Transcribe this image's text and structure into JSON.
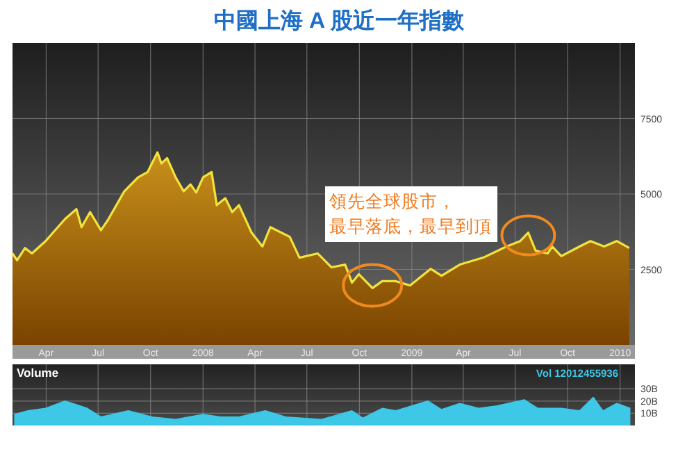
{
  "chart_data": [
    {
      "type": "area",
      "title": "中國上海 A 股近一年指數",
      "xlim": [
        "2007-02-01",
        "2010-01-27"
      ],
      "xticks": [
        {
          "value": "2007-04-01",
          "label": "Apr"
        },
        {
          "value": "2007-07-01",
          "label": "Jul"
        },
        {
          "value": "2007-10-01",
          "label": "Oct"
        },
        {
          "value": "2008-01-01",
          "label": "2008"
        },
        {
          "value": "2008-04-01",
          "label": "Apr"
        },
        {
          "value": "2008-07-01",
          "label": "Jul"
        },
        {
          "value": "2008-10-01",
          "label": "Oct"
        },
        {
          "value": "2009-01-01",
          "label": "2009"
        },
        {
          "value": "2009-04-01",
          "label": "Apr"
        },
        {
          "value": "2009-07-01",
          "label": "Jul"
        },
        {
          "value": "2009-10-01",
          "label": "Oct"
        },
        {
          "value": "2010-01-01",
          "label": "2010"
        }
      ],
      "ylim": [
        0,
        10000
      ],
      "yticks": [
        2500,
        5000,
        7500
      ],
      "grid": true,
      "annotations": [
        "領先全球股市，",
        "最早落底，最早到頂"
      ],
      "series": [
        {
          "color": "#f2e33a",
          "x": [
            "2007-02-01",
            "2007-02-09",
            "2007-02-23",
            "2007-03-07",
            "2007-03-31",
            "2007-05-04",
            "2007-05-24",
            "2007-06-02",
            "2007-06-17",
            "2007-07-06",
            "2007-07-18",
            "2007-08-16",
            "2007-09-09",
            "2007-09-26",
            "2007-10-13",
            "2007-10-20",
            "2007-10-30",
            "2007-11-14",
            "2007-11-28",
            "2007-12-10",
            "2007-12-20",
            "2008-01-01",
            "2008-01-16",
            "2008-01-25",
            "2008-02-09",
            "2008-02-21",
            "2008-03-04",
            "2008-03-26",
            "2008-04-14",
            "2008-04-28",
            "2008-06-01",
            "2008-06-18",
            "2008-07-20",
            "2008-08-13",
            "2008-09-06",
            "2008-09-18",
            "2008-09-30",
            "2008-10-24",
            "2008-11-10",
            "2008-12-04",
            "2008-12-12",
            "2008-12-29",
            "2009-02-03",
            "2009-02-22",
            "2009-03-26",
            "2009-05-06",
            "2009-06-16",
            "2009-07-10",
            "2009-07-24",
            "2009-08-06",
            "2009-08-27",
            "2009-09-04",
            "2009-09-20",
            "2009-10-22",
            "2009-11-10",
            "2009-12-04",
            "2009-12-26",
            "2010-01-17"
          ],
          "values": [
            3030,
            2800,
            3210,
            3030,
            3440,
            4170,
            4500,
            3900,
            4400,
            3800,
            4130,
            5090,
            5550,
            5730,
            6380,
            6010,
            6190,
            5550,
            5090,
            5320,
            5050,
            5550,
            5730,
            4630,
            4860,
            4400,
            4630,
            3720,
            3260,
            3900,
            3580,
            2890,
            3030,
            2570,
            2660,
            2060,
            2340,
            1880,
            2110,
            2110,
            2060,
            1970,
            2520,
            2290,
            2660,
            2890,
            3260,
            3440,
            3720,
            3120,
            3030,
            3260,
            2940,
            3260,
            3440,
            3260,
            3440,
            3210
          ]
        }
      ]
    },
    {
      "type": "area",
      "title": "Volume",
      "tick_labels": "y",
      "grid": true,
      "annotations": [
        "Vol 12012455936"
      ],
      "xlim": [
        "2007-02-01",
        "2010-01-27"
      ],
      "xticks": [
        {
          "value": "2007-04-01",
          "label": null
        },
        {
          "value": "2007-07-01",
          "label": null
        },
        {
          "value": "2007-10-01",
          "label": null
        },
        {
          "value": "2008-01-01",
          "label": null
        },
        {
          "value": "2008-04-01",
          "label": null
        },
        {
          "value": "2008-07-01",
          "label": null
        },
        {
          "value": "2008-10-01",
          "label": null
        },
        {
          "value": "2009-01-01",
          "label": null
        },
        {
          "value": "2009-04-01",
          "label": null
        },
        {
          "value": "2009-07-01",
          "label": null
        },
        {
          "value": "2009-10-01",
          "label": null
        },
        {
          "value": "2010-01-01",
          "label": null
        }
      ],
      "ylim": [
        0,
        50
      ],
      "yticks": [
        {
          "value": 10,
          "label": "10B"
        },
        {
          "value": 20,
          "label": "20B"
        },
        {
          "value": 30,
          "label": "30B"
        }
      ],
      "series": [
        {
          "color": "#3cc8e6",
          "x": [
            "2007-02-04",
            "2007-02-28",
            "2007-03-31",
            "2007-05-04",
            "2007-05-24",
            "2007-06-12",
            "2007-07-06",
            "2007-08-23",
            "2007-10-04",
            "2007-11-14",
            "2008-01-01",
            "2008-02-01",
            "2008-03-04",
            "2008-04-19",
            "2008-05-25",
            "2008-07-27",
            "2008-09-18",
            "2008-10-07",
            "2008-11-10",
            "2008-12-04",
            "2009-01-29",
            "2009-02-22",
            "2009-03-26",
            "2009-04-28",
            "2009-05-30",
            "2009-07-17",
            "2009-08-10",
            "2009-09-20",
            "2009-10-22",
            "2009-11-15",
            "2009-12-02",
            "2009-12-26",
            "2010-01-19"
          ],
          "values": [
            9,
            12,
            14,
            20,
            17,
            14,
            7,
            12,
            7,
            5,
            9,
            7,
            7,
            12,
            7,
            5,
            12,
            6,
            14,
            12,
            20,
            13,
            18,
            14,
            16,
            21,
            14,
            14,
            12,
            23,
            12,
            18,
            14
          ]
        }
      ]
    }
  ]
}
